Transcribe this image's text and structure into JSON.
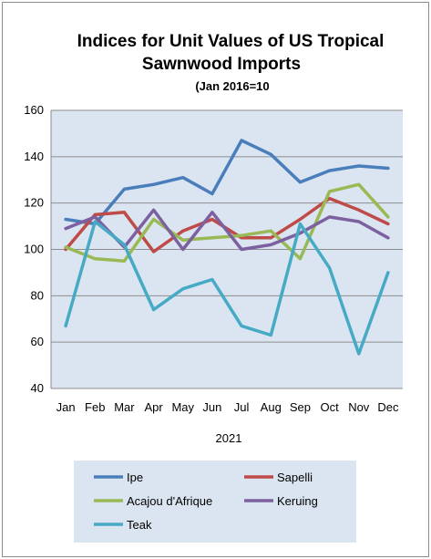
{
  "chart_data": {
    "type": "line",
    "title_lines": [
      "Indices for Unit Values of US Tropical",
      "Sawnwood Imports"
    ],
    "subtitle": "(Jan 2016=10",
    "xlabel": "2021",
    "ylabel": "",
    "categories": [
      "Jan",
      "Feb",
      "Mar",
      "Apr",
      "May",
      "Jun",
      "Jul",
      "Aug",
      "Sep",
      "Oct",
      "Nov",
      "Dec"
    ],
    "ylim": [
      40,
      160
    ],
    "yticks": [
      40,
      60,
      80,
      100,
      120,
      140,
      160
    ],
    "grid": true,
    "legend_position": "bottom",
    "series": [
      {
        "name": "Ipe",
        "color": "#4a7ebb",
        "values": [
          113,
          111,
          126,
          128,
          131,
          124,
          147,
          141,
          129,
          134,
          136,
          135
        ]
      },
      {
        "name": "Sapelli",
        "color": "#be4b48",
        "values": [
          100,
          115,
          116,
          99,
          108,
          113,
          105,
          105,
          113,
          122,
          117,
          111
        ]
      },
      {
        "name": "Acajou d'Afrique",
        "color": "#98b954",
        "values": [
          101,
          96,
          95,
          113,
          104,
          105,
          106,
          108,
          96,
          125,
          128,
          114
        ]
      },
      {
        "name": "Keruing",
        "color": "#7d60a0",
        "values": [
          109,
          114,
          101,
          117,
          100,
          116,
          100,
          102,
          107,
          114,
          112,
          105
        ]
      },
      {
        "name": "Teak",
        "color": "#46aac5",
        "values": [
          67,
          112,
          102,
          74,
          83,
          87,
          67,
          63,
          111,
          92,
          55,
          90
        ]
      }
    ]
  }
}
